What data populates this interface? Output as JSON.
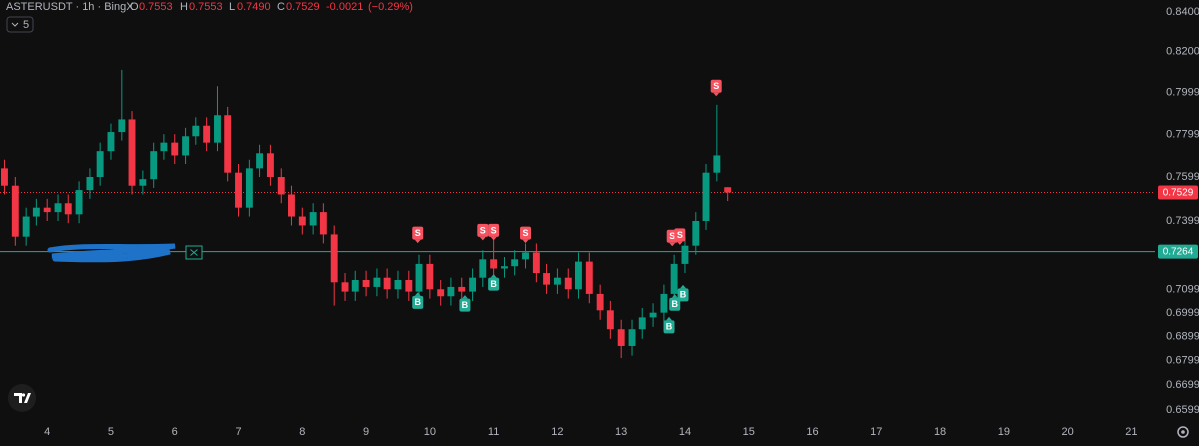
{
  "chart_data": {
    "type": "candlestick",
    "header": {
      "symbol": "ASTERUSDT · 1h · BingX",
      "o_label": "O",
      "open": 0.7553,
      "h_label": "H",
      "high": 0.7553,
      "l_label": "L",
      "low": {
        "value": 0.749,
        "label": "0.7490"
      },
      "c_label": "C",
      "close": 0.7529,
      "change": -0.0021,
      "change_pct": {
        "value": -0.29,
        "label": "(−0.29%)"
      },
      "indicators": 5
    },
    "log_scale": true,
    "grid": false,
    "up_color": "#089981",
    "down_color": "#f23645",
    "x": [
      3.33,
      3.5,
      3.67,
      3.83,
      4,
      4.17,
      4.33,
      4.5,
      4.67,
      4.83,
      5,
      5.17,
      5.33,
      5.5,
      5.67,
      5.83,
      6,
      6.17,
      6.33,
      6.5,
      6.67,
      6.83,
      7,
      7.17,
      7.33,
      7.5,
      7.67,
      7.83,
      8,
      8.17,
      8.33,
      8.5,
      8.67,
      8.83,
      9,
      9.17,
      9.33,
      9.5,
      9.67,
      9.83,
      10,
      10.17,
      10.33,
      10.5,
      10.67,
      10.83,
      11,
      11.17,
      11.33,
      11.5,
      11.67,
      11.83,
      12,
      12.17,
      12.33,
      12.5,
      12.67,
      12.83,
      13,
      13.17,
      13.33,
      13.5,
      13.67,
      13.83,
      14,
      14.17,
      14.33,
      14.5,
      14.67
    ],
    "open": [
      0.764,
      0.756,
      0.733,
      0.742,
      0.746,
      0.744,
      0.748,
      0.743,
      0.754,
      0.76,
      0.772,
      0.781,
      0.787,
      0.756,
      0.759,
      0.772,
      0.776,
      0.77,
      0.779,
      0.784,
      0.776,
      0.789,
      0.762,
      0.746,
      0.764,
      0.771,
      0.76,
      0.752,
      0.742,
      0.738,
      0.744,
      0.734,
      0.713,
      0.709,
      0.714,
      0.711,
      0.715,
      0.71,
      0.714,
      0.709,
      0.721,
      0.71,
      0.707,
      0.711,
      0.709,
      0.715,
      0.723,
      0.719,
      0.72,
      0.723,
      0.726,
      0.717,
      0.712,
      0.715,
      0.71,
      0.722,
      0.708,
      0.701,
      0.693,
      0.686,
      0.693,
      0.698,
      0.7,
      0.708,
      0.721,
      0.729,
      0.74,
      0.762,
      0.7553
    ],
    "high": [
      0.768,
      0.76,
      0.746,
      0.75,
      0.75,
      0.752,
      0.752,
      0.758,
      0.764,
      0.776,
      0.785,
      0.811,
      0.791,
      0.763,
      0.776,
      0.78,
      0.78,
      0.783,
      0.788,
      0.788,
      0.803,
      0.793,
      0.766,
      0.768,
      0.775,
      0.775,
      0.764,
      0.756,
      0.746,
      0.748,
      0.748,
      0.738,
      0.717,
      0.718,
      0.718,
      0.719,
      0.719,
      0.718,
      0.718,
      0.725,
      0.725,
      0.714,
      0.715,
      0.715,
      0.719,
      0.727,
      0.737,
      0.724,
      0.727,
      0.73,
      0.73,
      0.721,
      0.719,
      0.719,
      0.726,
      0.726,
      0.712,
      0.705,
      0.697,
      0.697,
      0.702,
      0.704,
      0.712,
      0.725,
      0.733,
      0.744,
      0.766,
      0.794,
      0.7553
    ],
    "low": [
      0.752,
      0.729,
      0.729,
      0.738,
      0.74,
      0.74,
      0.739,
      0.739,
      0.75,
      0.756,
      0.768,
      0.777,
      0.752,
      0.752,
      0.755,
      0.768,
      0.766,
      0.766,
      0.775,
      0.772,
      0.772,
      0.758,
      0.742,
      0.742,
      0.76,
      0.756,
      0.748,
      0.738,
      0.734,
      0.734,
      0.73,
      0.703,
      0.705,
      0.705,
      0.707,
      0.707,
      0.706,
      0.706,
      0.705,
      0.705,
      0.706,
      0.703,
      0.703,
      0.705,
      0.705,
      0.711,
      0.715,
      0.715,
      0.716,
      0.719,
      0.713,
      0.708,
      0.708,
      0.706,
      0.706,
      0.704,
      0.697,
      0.689,
      0.681,
      0.682,
      0.689,
      0.694,
      0.696,
      0.704,
      0.717,
      0.725,
      0.736,
      0.758,
      0.749
    ],
    "close": [
      0.756,
      0.733,
      0.742,
      0.746,
      0.744,
      0.748,
      0.743,
      0.754,
      0.76,
      0.772,
      0.781,
      0.787,
      0.756,
      0.759,
      0.772,
      0.776,
      0.77,
      0.779,
      0.784,
      0.776,
      0.789,
      0.762,
      0.746,
      0.764,
      0.771,
      0.76,
      0.752,
      0.742,
      0.738,
      0.744,
      0.734,
      0.713,
      0.709,
      0.714,
      0.711,
      0.715,
      0.71,
      0.714,
      0.709,
      0.721,
      0.71,
      0.707,
      0.711,
      0.709,
      0.715,
      0.723,
      0.719,
      0.72,
      0.723,
      0.726,
      0.717,
      0.712,
      0.715,
      0.71,
      0.722,
      0.708,
      0.701,
      0.693,
      0.686,
      0.693,
      0.698,
      0.7,
      0.708,
      0.721,
      0.729,
      0.74,
      0.762,
      0.77,
      0.7529
    ],
    "signals": [
      {
        "label": "S",
        "x": 9.81,
        "price": 0.7346,
        "color": "#f7525f"
      },
      {
        "label": "S",
        "x": 10.83,
        "price": 0.7358,
        "color": "#f7525f"
      },
      {
        "label": "S",
        "x": 11.0,
        "price": 0.7358,
        "color": "#f7525f"
      },
      {
        "label": "S",
        "x": 11.5,
        "price": 0.7346,
        "color": "#f7525f"
      },
      {
        "label": "S",
        "x": 13.8,
        "price": 0.7332,
        "color": "#f7525f"
      },
      {
        "label": "S",
        "x": 13.92,
        "price": 0.7338,
        "color": "#f7525f"
      },
      {
        "label": "S",
        "x": 14.49,
        "price": 0.803,
        "color": "#f7525f"
      },
      {
        "label": "B",
        "x": 9.81,
        "price": 0.7044,
        "color": "#22ab94"
      },
      {
        "label": "B",
        "x": 10.55,
        "price": 0.7032,
        "color": "#22ab94"
      },
      {
        "label": "B",
        "x": 11.0,
        "price": 0.7122,
        "color": "#22ab94"
      },
      {
        "label": "B",
        "x": 13.75,
        "price": 0.694,
        "color": "#22ab94"
      },
      {
        "label": "B",
        "x": 13.84,
        "price": 0.7036,
        "color": "#22ab94"
      },
      {
        "label": "B",
        "x": 13.97,
        "price": 0.7076,
        "color": "#22ab94"
      }
    ],
    "price_lines": [
      {
        "value": 0.7529,
        "color": "#f23645",
        "style": "dotted"
      },
      {
        "value": 0.7264,
        "color": "#22ab94",
        "style": "solid"
      }
    ],
    "xlim": [
      3.26,
      21.37
    ],
    "xticks": [
      4,
      5,
      6,
      7,
      8,
      9,
      10,
      11,
      12,
      13,
      14,
      15,
      16,
      17,
      18,
      19,
      20,
      21
    ],
    "ylim": [
      0.6551,
      0.8461
    ],
    "yticks": [
      {
        "value": 0.84,
        "label": "0.8400"
      },
      {
        "value": 0.82,
        "label": "0.8200"
      },
      0.7999,
      0.7799,
      0.7599,
      0.7399,
      0.7099,
      0.6999,
      0.6899,
      0.6799,
      0.6699,
      0.6599
    ]
  }
}
